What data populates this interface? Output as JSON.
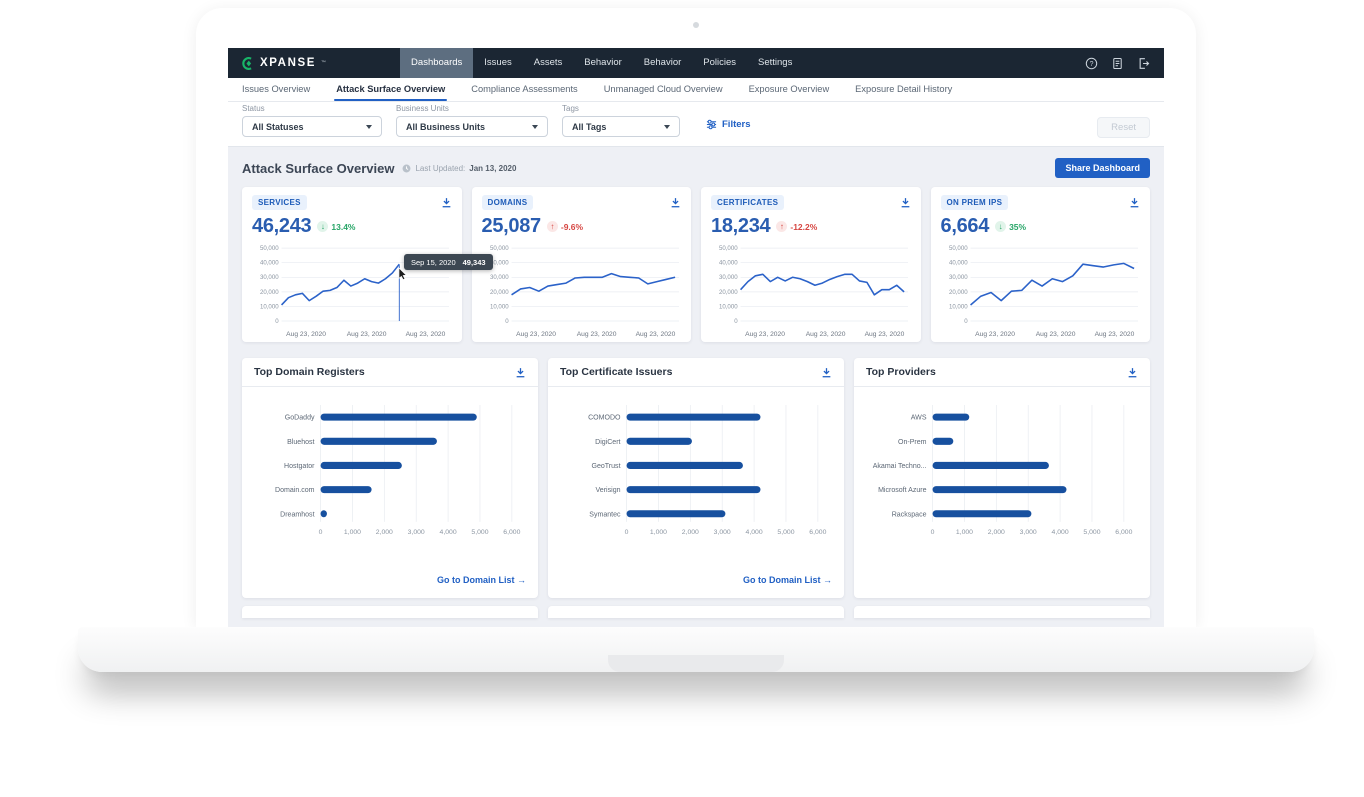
{
  "nav": {
    "brand": "XPANSE",
    "brand_tm": "™",
    "items": [
      {
        "label": "Dashboards",
        "active": true
      },
      {
        "label": "Issues",
        "active": false
      },
      {
        "label": "Assets",
        "active": false
      },
      {
        "label": "Behavior",
        "active": false
      },
      {
        "label": "Behavior",
        "active": false
      },
      {
        "label": "Policies",
        "active": false
      },
      {
        "label": "Settings",
        "active": false
      }
    ],
    "action_icons": [
      {
        "name": "help-icon"
      },
      {
        "name": "document-icon"
      },
      {
        "name": "logout-icon"
      }
    ]
  },
  "tabs": [
    {
      "label": "Issues Overview",
      "active": false
    },
    {
      "label": "Attack Surface Overview",
      "active": true
    },
    {
      "label": "Compliance Assessments",
      "active": false
    },
    {
      "label": "Unmanaged Cloud Overview",
      "active": false
    },
    {
      "label": "Exposure Overview",
      "active": false
    },
    {
      "label": "Exposure Detail History",
      "active": false
    }
  ],
  "filters": {
    "fields": [
      {
        "label": "Status",
        "value": "All Statuses"
      },
      {
        "label": "Business Units",
        "value": "All Business Units"
      },
      {
        "label": "Tags",
        "value": "All Tags"
      }
    ],
    "filters_button_label": "Filters",
    "reset_button_label": "Reset"
  },
  "header": {
    "title": "Attack Surface Overview",
    "last_updated_label": "Last Updated:",
    "last_updated_value": "Jan 13, 2020",
    "share_button_label": "Share Dashboard"
  },
  "colors": {
    "accent_blue": "#2160c4",
    "value_blue": "#2a5db0",
    "line_blue": "#2b62c9",
    "bar_blue": "#17509f",
    "trend_green": "#27a567",
    "trend_red": "#d64541",
    "nav_dark": "#1b2633",
    "brand_green": "#18b568"
  },
  "chart_data": [
    {
      "id": "services",
      "type": "line",
      "title": "SERVICES",
      "kpi_value": "46,243",
      "trend": {
        "direction": "down",
        "value": "13.4%",
        "color": "green"
      },
      "ylim": [
        0,
        50000
      ],
      "y_ticks": [
        0,
        10000,
        20000,
        30000,
        40000,
        50000
      ],
      "x_labels": [
        "Aug 23, 2020",
        "Aug 23, 2020",
        "Aug 23, 2020"
      ],
      "values": [
        11000,
        16000,
        18000,
        19000,
        14000,
        17000,
        20500,
        21000,
        23000,
        28000,
        24000,
        26000,
        29000,
        27000,
        26000,
        29000,
        33000,
        39000
      ],
      "x_extent": 0.72,
      "tooltip": {
        "date": "Sep 15, 2020",
        "value": "49,343"
      }
    },
    {
      "id": "domains",
      "type": "line",
      "title": "DOMAINS",
      "kpi_value": "25,087",
      "trend": {
        "direction": "up",
        "value": "-9.6%",
        "color": "red"
      },
      "ylim": [
        0,
        50000
      ],
      "y_ticks": [
        0,
        10000,
        20000,
        30000,
        40000,
        50000
      ],
      "x_labels": [
        "Aug 23, 2020",
        "Aug 23, 2020",
        "Aug 23, 2020"
      ],
      "values": [
        18000,
        22000,
        23000,
        20500,
        24000,
        25000,
        26000,
        29500,
        30000,
        30000,
        30000,
        32500,
        30500,
        30000,
        29500,
        25500,
        27000,
        28500,
        30000
      ],
      "x_extent": 1,
      "tooltip": null
    },
    {
      "id": "certificates",
      "type": "line",
      "title": "CERTIFICATES",
      "kpi_value": "18,234",
      "trend": {
        "direction": "up",
        "value": "-12.2%",
        "color": "red"
      },
      "ylim": [
        0,
        50000
      ],
      "y_ticks": [
        0,
        10000,
        20000,
        30000,
        40000,
        50000
      ],
      "x_labels": [
        "Aug 23, 2020",
        "Aug 23, 2020",
        "Aug 23, 2020"
      ],
      "values": [
        21500,
        27000,
        31000,
        32000,
        27000,
        30000,
        27500,
        30000,
        29000,
        27000,
        24500,
        26000,
        28500,
        30500,
        32000,
        32000,
        27500,
        26500,
        18000,
        21500,
        21500,
        24500,
        20000
      ],
      "x_extent": 1,
      "tooltip": null
    },
    {
      "id": "on_prem_ips",
      "type": "line",
      "title": "ON PREM IPS",
      "kpi_value": "6,664",
      "trend": {
        "direction": "down",
        "value": "35%",
        "color": "green"
      },
      "ylim": [
        0,
        50000
      ],
      "y_ticks": [
        0,
        10000,
        20000,
        30000,
        40000,
        50000
      ],
      "x_labels": [
        "Aug 23, 2020",
        "Aug 23, 2020",
        "Aug 23, 2020"
      ],
      "values": [
        11000,
        17000,
        19500,
        14000,
        20500,
        21000,
        28000,
        24000,
        29000,
        27000,
        31000,
        39000,
        38000,
        37000,
        38500,
        39500,
        36000
      ],
      "x_extent": 1,
      "tooltip": null
    },
    {
      "id": "top_domain_registers",
      "type": "bar",
      "title": "Top Domain Registers",
      "categories": [
        "GoDaddy",
        "Bluehost",
        "Hostgator",
        "Domain.com",
        "Dreamhost"
      ],
      "values": [
        4900,
        3650,
        2550,
        1600,
        200
      ],
      "xlim": [
        0,
        6000
      ],
      "x_ticks": [
        0,
        1000,
        2000,
        3000,
        4000,
        5000,
        6000
      ],
      "footer_link": "Go to Domain List →"
    },
    {
      "id": "top_certificate_issuers",
      "type": "bar",
      "title": "Top Certificate Issuers",
      "categories": [
        "COMODO",
        "DigiCert",
        "GeoTrust",
        "Verisign",
        "Symantec"
      ],
      "values": [
        4200,
        2050,
        3650,
        4200,
        3100
      ],
      "xlim": [
        0,
        6000
      ],
      "x_ticks": [
        0,
        1000,
        2000,
        3000,
        4000,
        5000,
        6000
      ],
      "footer_link": "Go to Domain List →"
    },
    {
      "id": "top_providers",
      "type": "bar",
      "title": "Top Providers",
      "categories": [
        "AWS",
        "On-Prem",
        "Akamai Techno...",
        "Microsoft Azure",
        "Rackspace"
      ],
      "values": [
        1150,
        650,
        3650,
        4200,
        3100
      ],
      "xlim": [
        0,
        6000
      ],
      "x_ticks": [
        0,
        1000,
        2000,
        3000,
        4000,
        5000,
        6000
      ],
      "footer_link": null
    }
  ]
}
